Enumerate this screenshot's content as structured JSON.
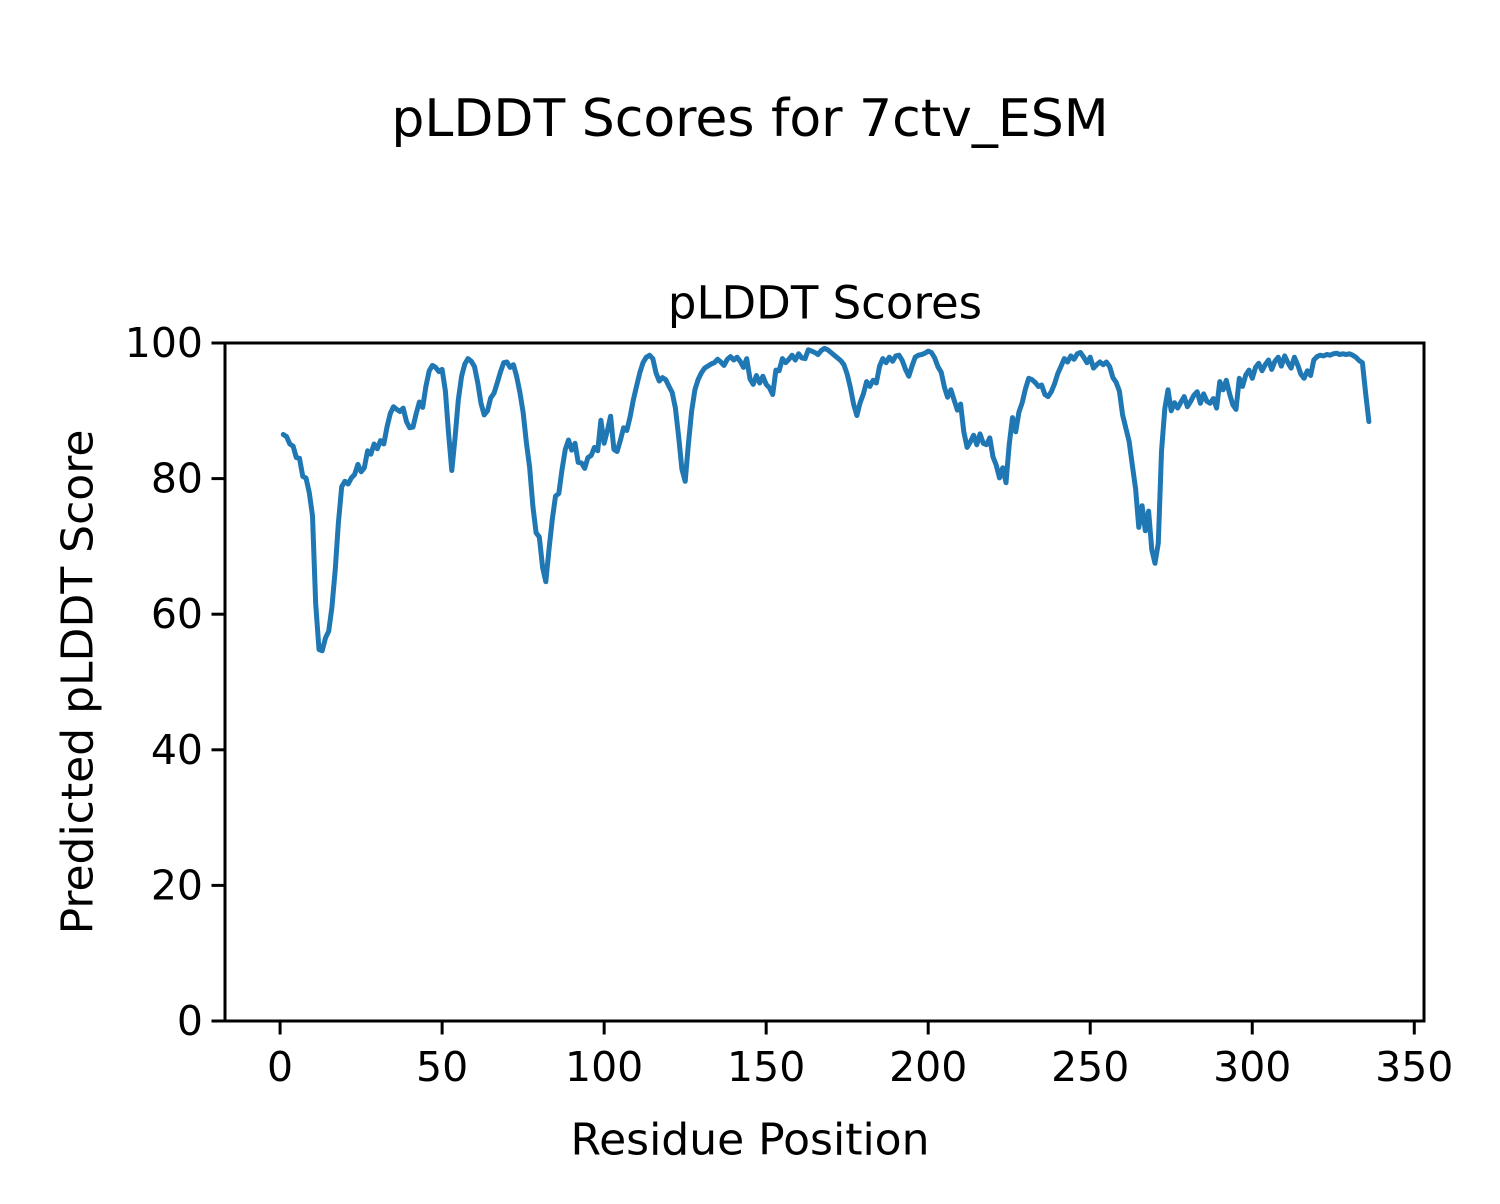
{
  "chart_data": {
    "type": "line",
    "suptitle": "pLDDT Scores for 7ctv_ESM",
    "title": "pLDDT Scores",
    "xlabel": "Residue Position",
    "ylabel": "Predicted pLDDT Score",
    "legend": null,
    "grid": false,
    "line_color": "#1f77b4",
    "xlim": [
      -17,
      353
    ],
    "ylim": [
      0,
      100
    ],
    "xticks": [
      0,
      50,
      100,
      150,
      200,
      250,
      300,
      350
    ],
    "yticks": [
      0,
      20,
      40,
      60,
      80,
      100
    ],
    "series_name": "pLDDT",
    "x_start": 1,
    "x_step": 1,
    "values": [
      86.5,
      86.2,
      85.1,
      84.8,
      83.1,
      83.0,
      80.3,
      80.1,
      77.9,
      74.5,
      61.5,
      54.8,
      54.6,
      56.5,
      57.5,
      61.0,
      66.5,
      73.5,
      78.8,
      79.6,
      79.2,
      80.1,
      80.6,
      82.1,
      81.0,
      81.6,
      84.1,
      83.6,
      85.1,
      84.4,
      85.6,
      85.1,
      87.6,
      89.6,
      90.6,
      90.2,
      89.9,
      90.4,
      88.4,
      87.5,
      87.6,
      89.6,
      91.3,
      90.5,
      93.6,
      95.9,
      96.7,
      96.4,
      95.8,
      96.1,
      92.9,
      86.6,
      81.2,
      86.1,
      91.6,
      95.1,
      96.9,
      97.7,
      97.3,
      96.5,
      94.1,
      91.1,
      89.4,
      90.0,
      91.9,
      92.6,
      94.1,
      95.7,
      97.1,
      97.2,
      96.4,
      96.8,
      95.1,
      92.7,
      89.8,
      85.3,
      81.7,
      75.9,
      72.0,
      71.4,
      66.9,
      64.8,
      69.7,
      74.0,
      77.4,
      77.8,
      81.3,
      84.3,
      85.7,
      84.2,
      85.2,
      82.4,
      82.3,
      81.5,
      83.1,
      83.4,
      84.6,
      84.1,
      88.6,
      85.2,
      87.1,
      89.2,
      84.3,
      84.0,
      85.6,
      87.5,
      87.1,
      89.1,
      91.6,
      93.6,
      95.6,
      97.1,
      97.9,
      98.2,
      97.7,
      95.6,
      94.4,
      94.9,
      94.6,
      93.6,
      92.7,
      90.4,
      86.1,
      81.4,
      79.6,
      85.1,
      89.9,
      93.1,
      94.6,
      95.6,
      96.3,
      96.6,
      96.9,
      97.1,
      97.6,
      97.2,
      96.7,
      97.6,
      98.0,
      97.5,
      97.9,
      97.3,
      96.4,
      97.7,
      94.7,
      93.9,
      95.2,
      94.1,
      95.1,
      93.9,
      93.4,
      92.4,
      96.0,
      95.9,
      97.7,
      97.1,
      97.6,
      98.2,
      97.5,
      98.4,
      97.8,
      97.7,
      99.0,
      98.8,
      98.6,
      98.3,
      98.9,
      99.2,
      99.0,
      98.6,
      98.2,
      97.8,
      97.4,
      96.8,
      95.4,
      93.4,
      90.9,
      89.3,
      91.2,
      92.5,
      94.3,
      93.6,
      94.5,
      94.1,
      96.6,
      97.7,
      97.1,
      97.9,
      97.3,
      98.1,
      98.2,
      97.4,
      96.1,
      95.1,
      96.6,
      97.9,
      98.2,
      98.3,
      98.5,
      98.8,
      98.6,
      97.8,
      96.5,
      95.7,
      93.5,
      92.0,
      93.1,
      91.6,
      90.1,
      91.0,
      86.9,
      84.6,
      85.4,
      86.4,
      85.0,
      86.6,
      85.2,
      85.0,
      86.0,
      83.2,
      82.0,
      80.1,
      81.6,
      79.4,
      85.0,
      89.0,
      86.9,
      89.8,
      91.2,
      93.2,
      94.8,
      94.6,
      94.2,
      93.6,
      93.8,
      92.4,
      92.1,
      92.8,
      94.0,
      95.5,
      96.6,
      97.7,
      97.2,
      98.1,
      97.6,
      98.4,
      98.6,
      97.9,
      97.1,
      97.9,
      96.3,
      96.8,
      97.2,
      96.8,
      97.2,
      96.5,
      94.9,
      94.2,
      92.9,
      89.4,
      87.4,
      85.5,
      81.9,
      78.5,
      72.8,
      76.0,
      72.3,
      75.2,
      69.5,
      67.5,
      70.5,
      84.0,
      90.3,
      93.1,
      90.0,
      91.2,
      90.4,
      91.3,
      92.1,
      90.6,
      91.4,
      92.3,
      92.8,
      91.1,
      92.5,
      91.4,
      91.1,
      91.8,
      90.4,
      94.3,
      93.1,
      94.5,
      92.5,
      90.9,
      90.2,
      94.8,
      93.6,
      95.3,
      96.0,
      94.8,
      96.4,
      97.0,
      95.9,
      96.8,
      97.5,
      96.1,
      97.3,
      97.9,
      96.6,
      98.1,
      97.1,
      96.3,
      97.9,
      96.8,
      95.4,
      94.8,
      95.9,
      95.2,
      97.5,
      98.0,
      98.2,
      98.1,
      98.3,
      98.2,
      98.4,
      98.5,
      98.3,
      98.4,
      98.3,
      98.4,
      98.2,
      97.9,
      97.4,
      97.1,
      92.5,
      88.4
    ]
  }
}
